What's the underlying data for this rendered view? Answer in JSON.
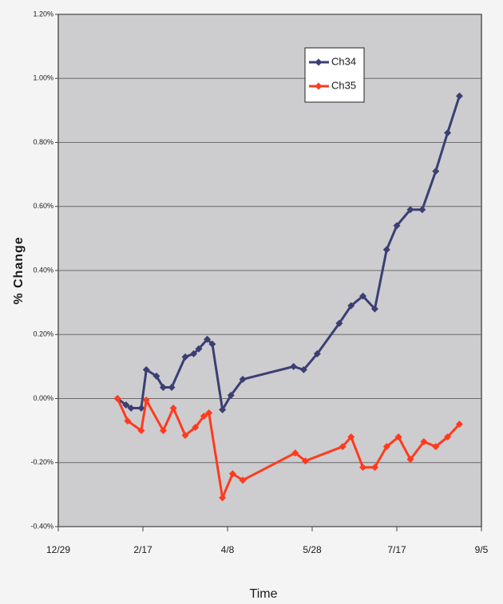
{
  "chart_data": {
    "type": "line",
    "x_label": "Time",
    "y_label": "% Change",
    "xlim": [
      0,
      250
    ],
    "xticks": [
      {
        "value": 0,
        "label": "12/29"
      },
      {
        "value": 50,
        "label": "2/17"
      },
      {
        "value": 100,
        "label": "4/8"
      },
      {
        "value": 150,
        "label": "5/28"
      },
      {
        "value": 200,
        "label": "7/17"
      },
      {
        "value": 250,
        "label": "9/5"
      }
    ],
    "ylim": [
      -0.4,
      1.2
    ],
    "yticks": [
      {
        "value": -0.4,
        "label": "-0.40%"
      },
      {
        "value": -0.2,
        "label": "-0.20%"
      },
      {
        "value": 0,
        "label": "0.00%"
      },
      {
        "value": 0.2,
        "label": "0.20%"
      },
      {
        "value": 0.4,
        "label": "0.40%"
      },
      {
        "value": 0.6,
        "label": "0.60%"
      },
      {
        "value": 0.8,
        "label": "0.80%"
      },
      {
        "value": 1.0,
        "label": "1.00%"
      },
      {
        "value": 1.2,
        "label": "1.20%"
      }
    ],
    "grid": true,
    "legend": "upper right",
    "series": [
      {
        "name": "Ch34",
        "color": "#3b3f73",
        "x": [
          35,
          40,
          43,
          49,
          52,
          58,
          62,
          67,
          75,
          80,
          83,
          88,
          91,
          97,
          102,
          109,
          139,
          145,
          153,
          166,
          173,
          180,
          187,
          194,
          200,
          208,
          215,
          223,
          230,
          237
        ],
        "values": [
          0.0,
          -0.02,
          -0.03,
          -0.03,
          0.09,
          0.07,
          0.035,
          0.035,
          0.13,
          0.14,
          0.155,
          0.185,
          0.17,
          -0.035,
          0.01,
          0.06,
          0.1,
          0.09,
          0.14,
          0.235,
          0.29,
          0.32,
          0.28,
          0.465,
          0.54,
          0.59,
          0.59,
          0.71,
          0.83,
          0.945
        ]
      },
      {
        "name": "Ch35",
        "color": "#ff3b1f",
        "x": [
          35,
          41,
          49,
          52,
          62,
          68,
          75,
          81,
          86,
          89,
          97,
          103,
          109,
          140,
          146,
          168,
          173,
          180,
          187,
          194,
          201,
          208,
          216,
          223,
          230,
          237
        ],
        "values": [
          0.0,
          -0.07,
          -0.1,
          -0.005,
          -0.1,
          -0.03,
          -0.115,
          -0.09,
          -0.055,
          -0.045,
          -0.31,
          -0.235,
          -0.255,
          -0.17,
          -0.195,
          -0.15,
          -0.12,
          -0.215,
          -0.215,
          -0.15,
          -0.12,
          -0.19,
          -0.135,
          -0.15,
          -0.12,
          -0.08
        ]
      }
    ]
  }
}
